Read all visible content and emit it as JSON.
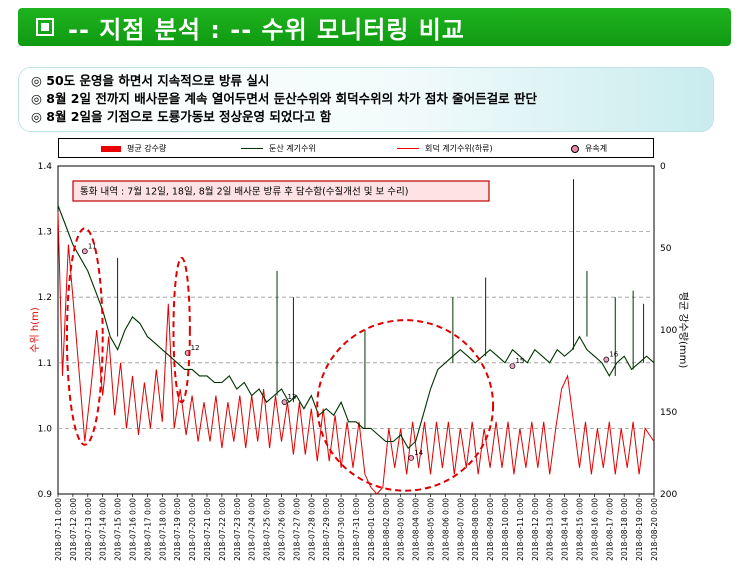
{
  "title": "-- 지점 분석 : -- 수위 모니터링 비교",
  "summary": [
    "◎  50도 운영을 하면서 지속적으로 방류 실시",
    "◎  8월 2일 전까지 배사문을 계속 열어두면서 둔산수위와 회덕수위의 차가 점차 줄어든걸로 판단",
    "◎  8월 2일을 기점으로 도룡가동보 정상운영 되었다고 함"
  ],
  "legend": {
    "rain": "평균 강수량",
    "dunsan": "둔산 계기수위",
    "hoedeok": "회덕 계기수위(하류)",
    "event": "유속계"
  },
  "colors": {
    "dunsan": "#003300",
    "hoedeok": "#e00000",
    "rain": "#e00000",
    "annotation_border": "#c00000",
    "annotation_fill": "#fde3e3"
  },
  "chart_data": {
    "type": "line",
    "title": "",
    "annotation": "통화 내역 : 7월 12일, 18일, 8월 2일 배사문 방류 후 담수함(수질개선 및 보 수리)",
    "ylabel": "수위 h(m)",
    "y2label": "평균 강수량(mm)",
    "ylim": [
      0.9,
      1.4
    ],
    "yticks": [
      "0.9",
      "1.0",
      "1.1",
      "1.2",
      "1.3",
      "1.4"
    ],
    "y2lim": [
      0,
      200
    ],
    "y2ticks": [
      "0",
      "50",
      "100",
      "150",
      "200"
    ],
    "y2_inverted": true,
    "x_range_days": [
      0,
      40
    ],
    "xticks": [
      "2018-07-11 0:00",
      "2018-07-12 0:00",
      "2018-07-13 0:00",
      "2018-07-14 0:00",
      "2018-07-15 0:00",
      "2018-07-16 0:00",
      "2018-07-17 0:00",
      "2018-07-18 0:00",
      "2018-07-19 0:00",
      "2018-07-20 0:00",
      "2018-07-21 0:00",
      "2018-07-22 0:00",
      "2018-07-23 0:00",
      "2018-07-24 0:00",
      "2018-07-25 0:00",
      "2018-07-26 0:00",
      "2018-07-27 0:00",
      "2018-07-28 0:00",
      "2018-07-29 0:00",
      "2018-07-30 0:00",
      "2018-07-31 0:00",
      "2018-08-01 0:00",
      "2018-08-02 0:00",
      "2018-08-03 0:00",
      "2018-08-04 0:00",
      "2018-08-05 0:00",
      "2018-08-06 0:00",
      "2018-08-07 0:00",
      "2018-08-08 0:00",
      "2018-08-09 0:00",
      "2018-08-10 0:00",
      "2018-08-11 0:00",
      "2018-08-12 0:00",
      "2018-08-13 0:00",
      "2018-08-14 0:00",
      "2018-08-15 0:00",
      "2018-08-16 0:00",
      "2018-08-17 0:00",
      "2018-08-18 0:00",
      "2018-08-19 0:00",
      "2018-08-20 0:00"
    ],
    "series": [
      {
        "name": "둔산 계기수위",
        "x": [
          0,
          0.5,
          1,
          1.5,
          2,
          2.5,
          3,
          3.5,
          4,
          4.5,
          5,
          5.5,
          6,
          6.5,
          7,
          7.5,
          8,
          8.5,
          9,
          9.5,
          10,
          10.5,
          11,
          11.5,
          12,
          12.5,
          13,
          13.5,
          14,
          14.5,
          15,
          15.5,
          16,
          16.5,
          17,
          17.5,
          18,
          18.5,
          19,
          19.5,
          20,
          20.5,
          21,
          21.5,
          22,
          22.5,
          23,
          23.5,
          24,
          24.5,
          25,
          25.5,
          26,
          26.5,
          27,
          27.5,
          28,
          28.5,
          29,
          29.5,
          30,
          30.5,
          31,
          31.5,
          32,
          32.5,
          33,
          33.5,
          34,
          34.5,
          35,
          35.5,
          36,
          36.5,
          37,
          37.5,
          38,
          38.5,
          39,
          39.5,
          40
        ],
        "y": [
          1.34,
          1.31,
          1.28,
          1.26,
          1.24,
          1.21,
          1.18,
          1.14,
          1.12,
          1.15,
          1.17,
          1.16,
          1.14,
          1.13,
          1.12,
          1.11,
          1.1,
          1.09,
          1.09,
          1.08,
          1.08,
          1.07,
          1.07,
          1.08,
          1.06,
          1.07,
          1.05,
          1.06,
          1.04,
          1.05,
          1.06,
          1.04,
          1.05,
          1.03,
          1.05,
          1.02,
          1.03,
          1.02,
          1.04,
          1.01,
          1.01,
          1.0,
          1.0,
          0.99,
          0.98,
          0.98,
          0.99,
          0.97,
          0.98,
          1.02,
          1.06,
          1.09,
          1.1,
          1.11,
          1.12,
          1.11,
          1.1,
          1.11,
          1.12,
          1.11,
          1.1,
          1.12,
          1.11,
          1.1,
          1.12,
          1.11,
          1.1,
          1.12,
          1.11,
          1.12,
          1.14,
          1.12,
          1.11,
          1.1,
          1.08,
          1.1,
          1.11,
          1.09,
          1.1,
          1.11,
          1.1
        ],
        "spikes": [
          [
            4,
            1.26
          ],
          [
            14.7,
            1.24
          ],
          [
            15.8,
            1.2
          ],
          [
            20.6,
            1.15
          ],
          [
            26.5,
            1.2
          ],
          [
            28.7,
            1.23
          ],
          [
            34.6,
            1.38
          ],
          [
            35.5,
            1.24
          ],
          [
            37.4,
            1.2
          ],
          [
            38.6,
            1.21
          ],
          [
            39.3,
            1.19
          ]
        ]
      },
      {
        "name": "회덕 계기수위(하류)",
        "x": [
          0,
          0.3,
          0.7,
          1,
          1.4,
          1.8,
          2.2,
          2.6,
          3,
          3.4,
          3.8,
          4.2,
          4.6,
          5,
          5.4,
          5.8,
          6.2,
          6.6,
          7,
          7.4,
          7.8,
          8.2,
          8.6,
          9,
          9.4,
          9.8,
          10.2,
          10.6,
          11,
          11.4,
          11.8,
          12.2,
          12.6,
          13,
          13.4,
          13.8,
          14.2,
          14.6,
          15,
          15.4,
          15.8,
          16.2,
          16.6,
          17,
          17.4,
          17.8,
          18.2,
          18.6,
          19,
          19.4,
          19.8,
          20.2,
          20.6,
          21,
          21.4,
          21.8,
          22.2,
          22.6,
          23,
          23.4,
          23.8,
          24.2,
          24.6,
          25,
          25.4,
          25.8,
          26.2,
          26.6,
          27,
          27.4,
          27.8,
          28.2,
          28.6,
          29,
          29.4,
          29.8,
          30.2,
          30.6,
          31,
          31.4,
          31.8,
          32.2,
          32.6,
          33,
          33.4,
          33.8,
          34.2,
          34.6,
          35,
          35.4,
          35.8,
          36.2,
          36.6,
          37,
          37.4,
          37.8,
          38.2,
          38.6,
          39,
          39.4,
          40
        ],
        "y": [
          1.33,
          1.08,
          1.28,
          1.2,
          1.09,
          0.98,
          1.06,
          1.15,
          1.05,
          1.14,
          1.02,
          1.1,
          1.0,
          1.08,
          0.99,
          1.07,
          1.0,
          1.09,
          1.01,
          1.19,
          1.0,
          1.06,
          0.99,
          1.05,
          0.98,
          1.04,
          0.98,
          1.05,
          0.97,
          1.04,
          0.98,
          1.05,
          0.97,
          1.05,
          0.98,
          1.06,
          0.97,
          1.05,
          0.98,
          1.04,
          0.96,
          1.04,
          0.96,
          1.03,
          0.95,
          1.03,
          0.95,
          1.02,
          0.94,
          1.01,
          0.94,
          1.01,
          0.93,
          0.91,
          0.9,
          0.91,
          1.0,
          0.94,
          1.0,
          0.93,
          1.01,
          0.94,
          1.01,
          0.93,
          1.01,
          0.94,
          1.01,
          0.93,
          1.0,
          0.94,
          1.01,
          0.93,
          1.0,
          0.94,
          1.01,
          0.94,
          1.01,
          0.93,
          1.0,
          0.94,
          1.01,
          0.94,
          1.01,
          0.93,
          1.0,
          1.06,
          1.08,
          1.01,
          0.94,
          1.01,
          0.93,
          1.0,
          0.94,
          1.01,
          0.93,
          1.0,
          0.94,
          1.01,
          0.93,
          1.0,
          0.98
        ]
      },
      {
        "name": "평균 강수량",
        "values": []
      }
    ],
    "markers": [
      {
        "label": "11",
        "x": 1.8,
        "y": 1.27
      },
      {
        "label": "12",
        "x": 8.7,
        "y": 1.115
      },
      {
        "label": "13",
        "x": 15.2,
        "y": 1.04
      },
      {
        "label": "14",
        "x": 23.7,
        "y": 0.955
      },
      {
        "label": "15",
        "x": 30.5,
        "y": 1.095
      },
      {
        "label": "16",
        "x": 36.8,
        "y": 1.105
      }
    ],
    "ellipses": [
      {
        "cx": 1.8,
        "cy": 1.14,
        "rx_days": 1.2,
        "ry": 0.165
      },
      {
        "cx": 8.3,
        "cy": 1.15,
        "rx_days": 0.55,
        "ry": 0.11
      },
      {
        "cx": 23.3,
        "cy": 1.035,
        "rx_days": 5.9,
        "ry": 0.13
      }
    ],
    "grid": "horizontal dashed"
  }
}
